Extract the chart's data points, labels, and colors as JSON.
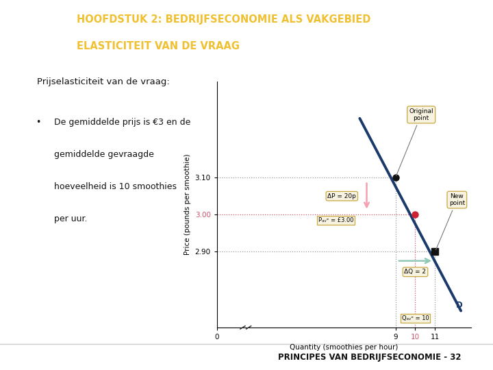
{
  "bg_color": "#f0ede8",
  "header_bg": "#1f3864",
  "header_text1": "HOOFDSTUK 2: BEDRIJFSECONOMIE ALS VAKGEBIED",
  "header_text2": "ELASTICITEIT VAN DE VRAAG",
  "header_text_color": "#f0c030",
  "footer_text": "PRINCIPES VAN BEDRIJFSECONOMIE - 32",
  "footer_bg": "#ffffff",
  "footer_border": "#cccccc",
  "slide_title": "Prijselasticiteit van de vraag:",
  "bullet_line1": "De gemiddelde prijs is €3 en de",
  "bullet_line2": "gemiddelde gevraagde",
  "bullet_line3": "hoeveelheid is 10 smoothies",
  "bullet_line4": "per uur.",
  "demand_line_x": [
    7.2,
    12.3
  ],
  "demand_line_y": [
    3.26,
    2.74
  ],
  "demand_color": "#1a3a6b",
  "point_original_x": 9,
  "point_original_y": 3.1,
  "point_mid_x": 10,
  "point_mid_y": 3.0,
  "point_new_x": 11,
  "point_new_y": 2.9,
  "xlabel": "Quantity (smoothies per hour)",
  "ylabel": "Price (pounds per smoothie)",
  "xtick_labels": [
    "0",
    "9",
    "10",
    "11"
  ],
  "xtick_vals": [
    0,
    9,
    10,
    11
  ],
  "ytick_labels": [
    "2.90",
    "3.00",
    "3.10"
  ],
  "ytick_vals": [
    2.9,
    3.0,
    3.1
  ],
  "xlim": [
    0,
    12.8
  ],
  "ylim": [
    2.695,
    3.36
  ],
  "annotation_original": "Original\npoint",
  "annotation_new": "New\npoint",
  "annotation_d": "D",
  "label_delta_p": "ΔP = 20p",
  "label_p_ave": "Pₐᵥᵉ = £3.00",
  "label_delta_q": "ΔQ = 2",
  "label_q_ave": "Qₐᵥᵉ = 10",
  "pink_arrow_color": "#f4a0b0",
  "teal_arrow_color": "#90c8b8",
  "gray_dot_color": "#999999",
  "pink_dot_color": "#cc5566",
  "box_fill": "#f8f3e0",
  "box_edge": "#c8a840",
  "content_bg": "#ffffff"
}
